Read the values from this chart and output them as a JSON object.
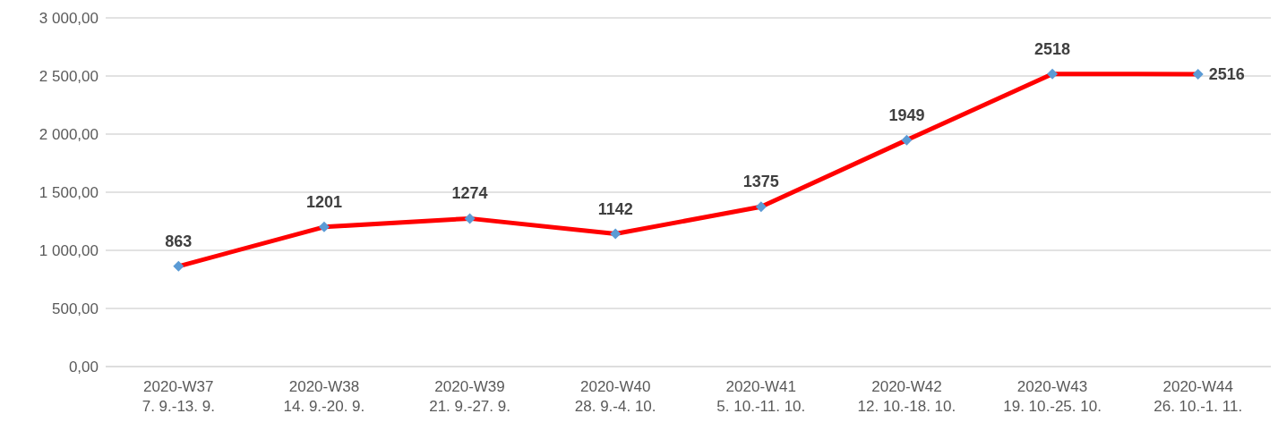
{
  "chart_data": {
    "type": "line",
    "categories": [
      "2020-W37\n7. 9.-13. 9.",
      "2020-W38\n14. 9.-20. 9.",
      "2020-W39\n21. 9.-27. 9.",
      "2020-W40\n28. 9.-4. 10.",
      "2020-W41\n5. 10.-11. 10.",
      "2020-W42\n12. 10.-18. 10.",
      "2020-W43\n19. 10.-25. 10.",
      "2020-W44\n26. 10.-1. 11."
    ],
    "series": [
      {
        "color": "#ff0000",
        "colors": [
          "#5b9bd5",
          "#5b9bd5",
          "#5b9bd5",
          "#5b9bd5",
          "#5b9bd5",
          "#5b9bd5",
          "#5b9bd5",
          "#5b9bd5"
        ],
        "values": [
          863,
          1201,
          1274,
          1142,
          1375,
          1949,
          2518,
          2516
        ]
      }
    ],
    "ylim": [
      0,
      3000
    ],
    "yticks": [
      {
        "value": 0,
        "label": "0,00"
      },
      {
        "value": 500,
        "label": "500,00"
      },
      {
        "value": 1000,
        "label": "1 000,00"
      },
      {
        "value": 1500,
        "label": "1 500,00"
      },
      {
        "value": 2000,
        "label": "2 000,00"
      },
      {
        "value": 2500,
        "label": "2 500,00"
      },
      {
        "value": 3000,
        "label": "3 000,00"
      }
    ],
    "grid": "y",
    "marker": "diamond",
    "line_style": "solid",
    "data_labels": true,
    "legend": false
  }
}
